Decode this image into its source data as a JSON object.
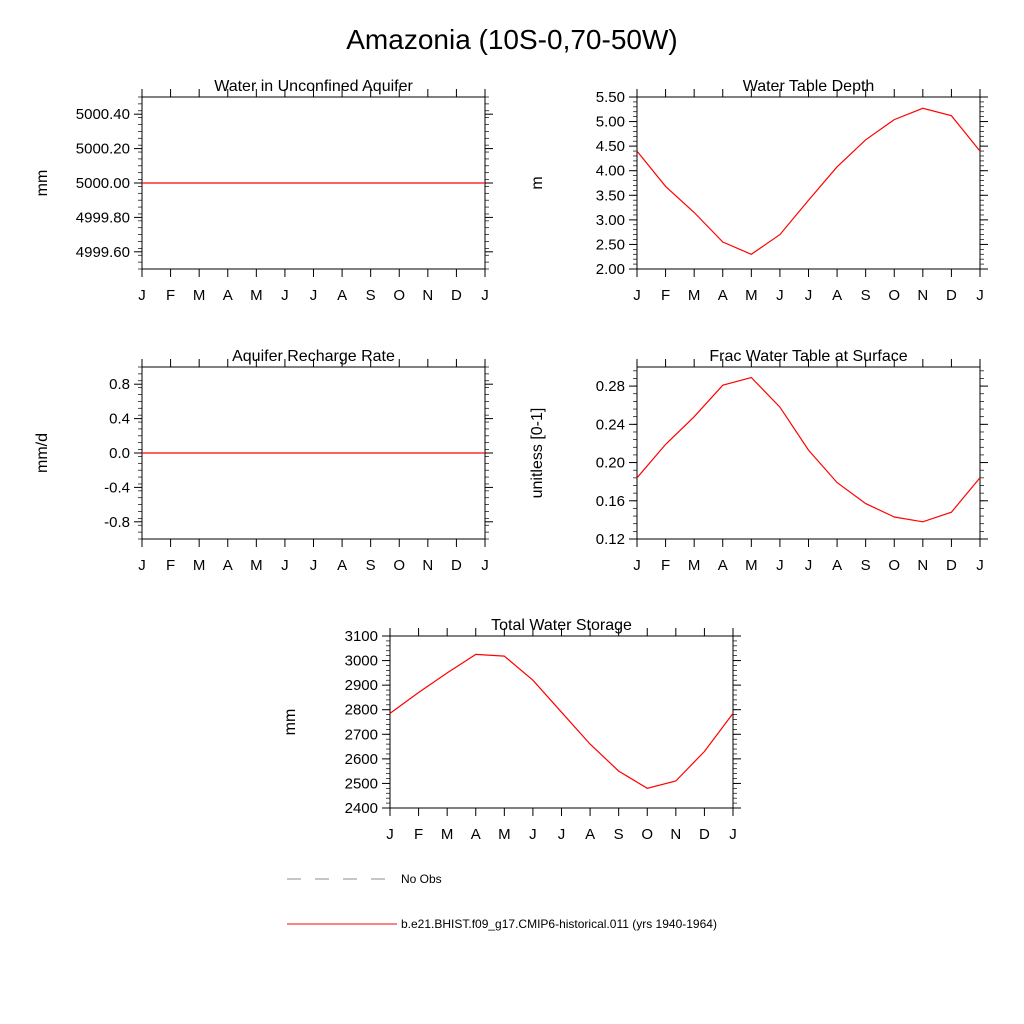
{
  "figure": {
    "title": "Amazonia (10S-0,70-50W)"
  },
  "legend": [
    {
      "label": "No Obs",
      "color": "#8c8c8c",
      "style": "dashed"
    },
    {
      "label": "b.e21.BHIST.f09_g17.CMIP6-historical.011 (yrs 1940-1964)",
      "color": "#ff0000",
      "style": "solid"
    }
  ],
  "chart_data": [
    {
      "type": "line",
      "title": "Water in Unconfined Aquifer",
      "xlabel": "",
      "ylabel": "mm",
      "categories": [
        "J",
        "F",
        "M",
        "A",
        "M",
        "J",
        "J",
        "A",
        "S",
        "O",
        "N",
        "D",
        "J"
      ],
      "ylim": [
        4999.5,
        5000.5
      ],
      "yticks": [
        4999.6,
        4999.8,
        5000.0,
        5000.2,
        5000.4
      ],
      "ytick_labels": [
        "4999.60",
        "4999.80",
        "5000.00",
        "5000.20",
        "5000.40"
      ],
      "grid": false,
      "series": [
        {
          "color": "#ff0000",
          "values": [
            5000,
            5000,
            5000,
            5000,
            5000,
            5000,
            5000,
            5000,
            5000,
            5000,
            5000,
            5000,
            5000
          ]
        }
      ]
    },
    {
      "type": "line",
      "title": "Water Table Depth",
      "xlabel": "",
      "ylabel": "m",
      "categories": [
        "J",
        "F",
        "M",
        "A",
        "M",
        "J",
        "J",
        "A",
        "S",
        "O",
        "N",
        "D",
        "J"
      ],
      "ylim": [
        2.0,
        5.5
      ],
      "yticks": [
        2.0,
        2.5,
        3.0,
        3.5,
        4.0,
        4.5,
        5.0,
        5.5
      ],
      "ytick_labels": [
        "2.00",
        "2.50",
        "3.00",
        "3.50",
        "4.00",
        "4.50",
        "5.00",
        "5.50"
      ],
      "grid": false,
      "series": [
        {
          "color": "#ff0000",
          "values": [
            4.4,
            3.68,
            3.15,
            2.55,
            2.3,
            2.7,
            3.4,
            4.08,
            4.63,
            5.04,
            5.27,
            5.12,
            4.4
          ]
        }
      ]
    },
    {
      "type": "line",
      "title": "Aquifer Recharge Rate",
      "xlabel": "",
      "ylabel": "mm/d",
      "categories": [
        "J",
        "F",
        "M",
        "A",
        "M",
        "J",
        "J",
        "A",
        "S",
        "O",
        "N",
        "D",
        "J"
      ],
      "ylim": [
        -1.0,
        1.0
      ],
      "yticks": [
        -0.8,
        -0.4,
        0.0,
        0.4,
        0.8
      ],
      "ytick_labels": [
        "-0.8",
        "-0.4",
        "0.0",
        "0.4",
        "0.8"
      ],
      "grid": false,
      "series": [
        {
          "color": "#ff0000",
          "values": [
            0,
            0,
            0,
            0,
            0,
            0,
            0,
            0,
            0,
            0,
            0,
            0,
            0
          ]
        }
      ]
    },
    {
      "type": "line",
      "title": "Frac Water Table at Surface",
      "xlabel": "",
      "ylabel": "unitless [0-1]",
      "categories": [
        "J",
        "F",
        "M",
        "A",
        "M",
        "J",
        "J",
        "A",
        "S",
        "O",
        "N",
        "D",
        "J"
      ],
      "ylim": [
        0.12,
        0.3
      ],
      "yticks": [
        0.12,
        0.16,
        0.2,
        0.24,
        0.28
      ],
      "ytick_labels": [
        "0.12",
        "0.16",
        "0.20",
        "0.24",
        "0.28"
      ],
      "grid": false,
      "series": [
        {
          "color": "#ff0000",
          "values": [
            0.184,
            0.219,
            0.248,
            0.281,
            0.289,
            0.258,
            0.213,
            0.179,
            0.157,
            0.143,
            0.138,
            0.148,
            0.184
          ]
        }
      ]
    },
    {
      "type": "line",
      "title": "Total Water Storage",
      "xlabel": "",
      "ylabel": "mm",
      "categories": [
        "J",
        "F",
        "M",
        "A",
        "M",
        "J",
        "J",
        "A",
        "S",
        "O",
        "N",
        "D",
        "J"
      ],
      "ylim": [
        2400,
        3100
      ],
      "yticks": [
        2400,
        2500,
        2600,
        2700,
        2800,
        2900,
        3000,
        3100
      ],
      "ytick_labels": [
        "2400",
        "2500",
        "2600",
        "2700",
        "2800",
        "2900",
        "3000",
        "3100"
      ],
      "grid": false,
      "series": [
        {
          "color": "#ff0000",
          "values": [
            2785,
            2870,
            2950,
            3025,
            3018,
            2920,
            2790,
            2660,
            2550,
            2480,
            2510,
            2630,
            2785
          ]
        }
      ]
    }
  ]
}
